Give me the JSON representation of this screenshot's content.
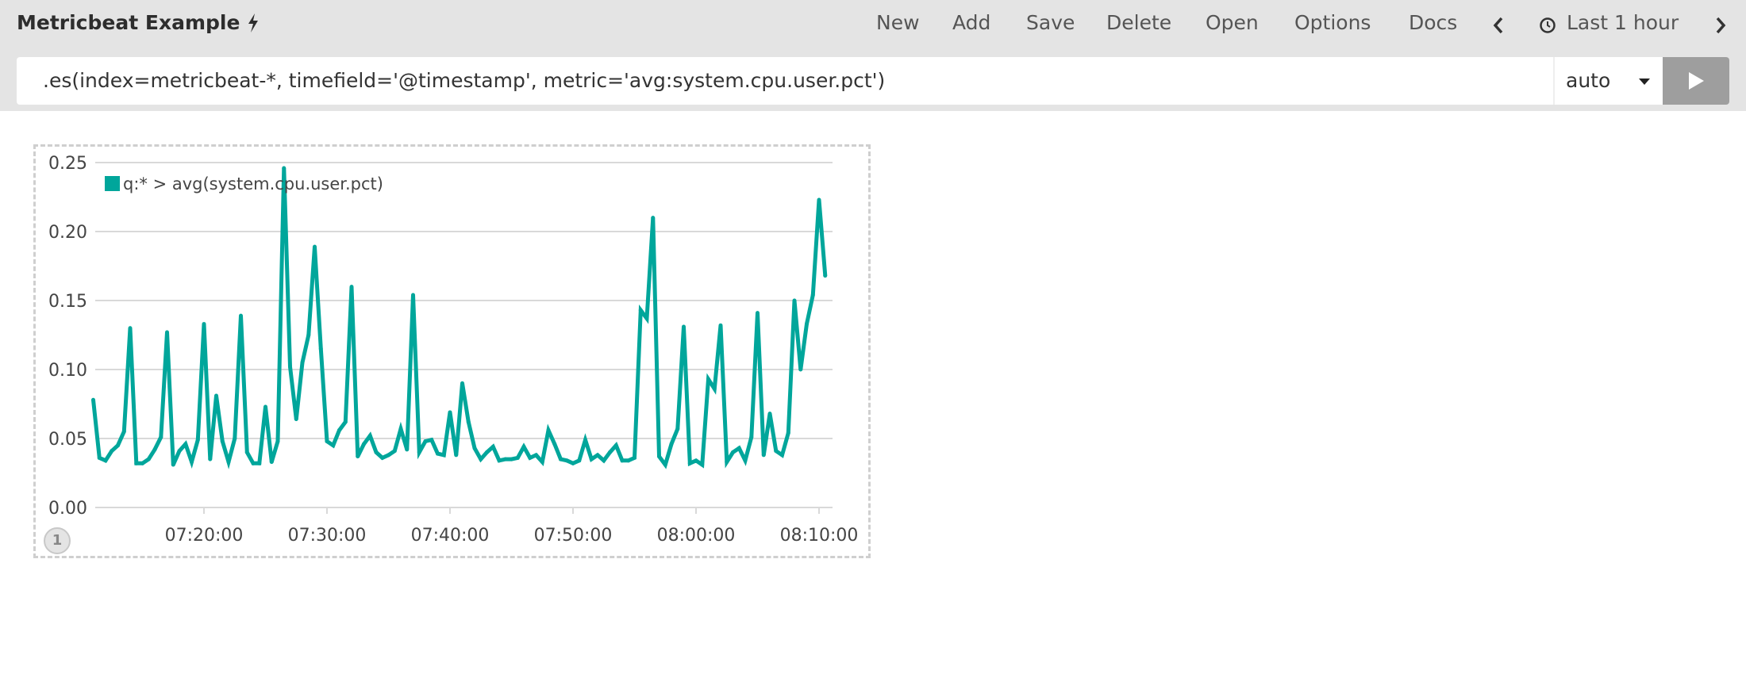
{
  "header": {
    "title": "Metricbeat Example",
    "title_icon": "bolt-icon",
    "nav": [
      {
        "label": "New"
      },
      {
        "label": "Add"
      },
      {
        "label": "Save"
      },
      {
        "label": "Delete"
      },
      {
        "label": "Open"
      },
      {
        "label": "Options"
      },
      {
        "label": "Docs"
      }
    ],
    "time_prev_icon": "chevron-left-icon",
    "time_icon": "clock-icon",
    "time_range": "Last 1 hour",
    "time_next_icon": "chevron-right-icon"
  },
  "query": {
    "expression": ".es(index=metricbeat-*, timefield='@timestamp', metric='avg:system.cpu.user.pct')",
    "interval": "auto",
    "run_icon": "play-icon"
  },
  "panel": {
    "badge": "1"
  },
  "colors": {
    "series": "#00a69b",
    "grid": "#d9d9d9",
    "topbar": "#e4e4e4",
    "run_button": "#9e9e9e"
  },
  "chart_data": {
    "type": "line",
    "grid": true,
    "legend_placement": "top-left",
    "ylim": [
      0,
      0.25
    ],
    "yticks": [
      "0.00",
      "0.05",
      "0.10",
      "0.15",
      "0.20",
      "0.25"
    ],
    "xticks": [
      "07:20:00",
      "07:30:00",
      "07:40:00",
      "07:50:00",
      "08:00:00",
      "08:10:00"
    ],
    "x_start": "07:11:00",
    "x_interval_seconds": 30,
    "series": [
      {
        "name": "q:* > avg(system.cpu.user.pct)",
        "values": [
          0.078,
          0.036,
          0.034,
          0.041,
          0.045,
          0.055,
          0.13,
          0.032,
          0.032,
          0.035,
          0.042,
          0.051,
          0.127,
          0.031,
          0.041,
          0.046,
          0.033,
          0.049,
          0.133,
          0.035,
          0.081,
          0.048,
          0.033,
          0.05,
          0.139,
          0.04,
          0.032,
          0.032,
          0.073,
          0.033,
          0.048,
          0.246,
          0.102,
          0.064,
          0.105,
          0.125,
          0.189,
          0.115,
          0.048,
          0.045,
          0.056,
          0.062,
          0.16,
          0.037,
          0.046,
          0.052,
          0.04,
          0.036,
          0.038,
          0.041,
          0.057,
          0.042,
          0.154,
          0.04,
          0.048,
          0.049,
          0.039,
          0.038,
          0.069,
          0.038,
          0.09,
          0.062,
          0.043,
          0.035,
          0.04,
          0.044,
          0.034,
          0.035,
          0.035,
          0.036,
          0.044,
          0.036,
          0.038,
          0.033,
          0.056,
          0.046,
          0.035,
          0.034,
          0.032,
          0.034,
          0.049,
          0.035,
          0.038,
          0.034,
          0.04,
          0.045,
          0.034,
          0.034,
          0.036,
          0.143,
          0.137,
          0.21,
          0.037,
          0.031,
          0.046,
          0.057,
          0.131,
          0.032,
          0.034,
          0.031,
          0.093,
          0.086,
          0.132,
          0.033,
          0.04,
          0.043,
          0.034,
          0.051,
          0.141,
          0.038,
          0.068,
          0.041,
          0.038,
          0.054,
          0.15,
          0.1,
          0.133,
          0.154,
          0.223,
          0.168
        ]
      }
    ]
  }
}
